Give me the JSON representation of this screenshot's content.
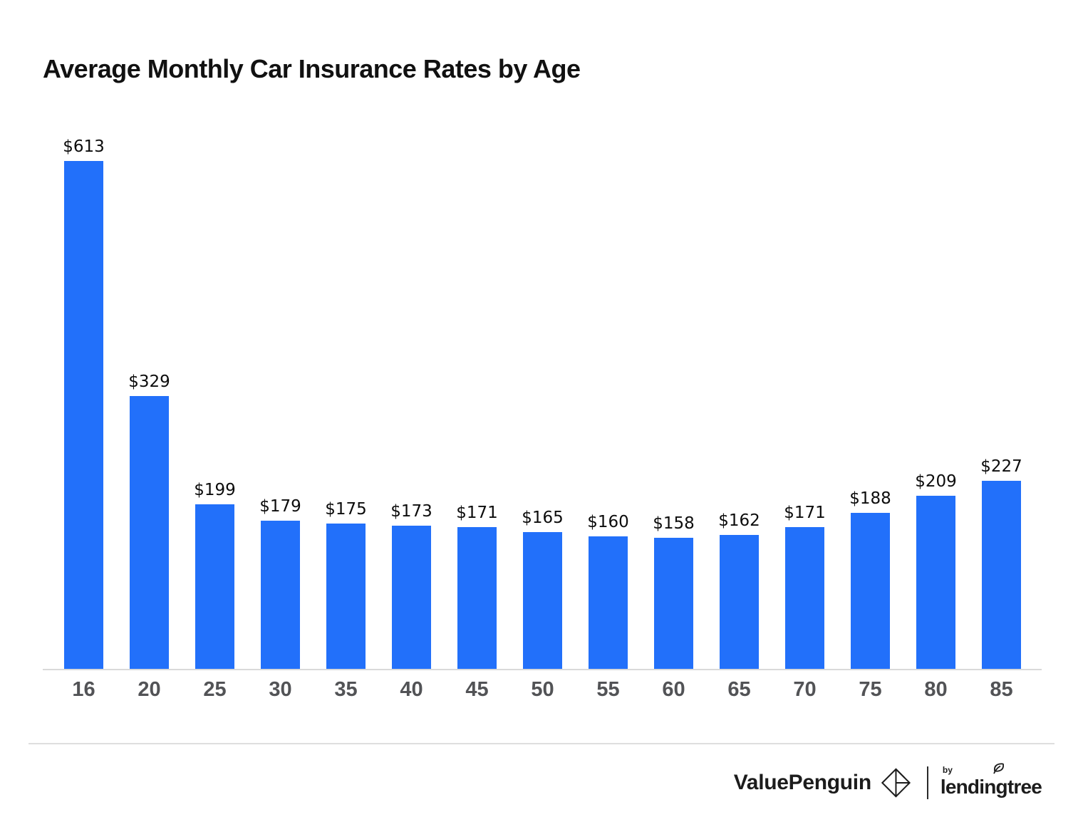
{
  "title": "Average Monthly Car Insurance Rates by Age",
  "chart_data": {
    "type": "bar",
    "title": "Average Monthly Car Insurance Rates by Age",
    "categories": [
      "16",
      "20",
      "25",
      "30",
      "35",
      "40",
      "45",
      "50",
      "55",
      "60",
      "65",
      "70",
      "75",
      "80",
      "85"
    ],
    "values": [
      613,
      329,
      199,
      179,
      175,
      173,
      171,
      165,
      160,
      158,
      162,
      171,
      188,
      209,
      227
    ],
    "value_labels": [
      "$613",
      "$329",
      "$199",
      "$179",
      "$175",
      "$173",
      "$171",
      "$165",
      "$160",
      "$158",
      "$162",
      "$171",
      "$188",
      "$209",
      "$227"
    ],
    "xlabel": "",
    "ylabel": "",
    "ylim": [
      0,
      650
    ],
    "grid": false,
    "legend": false,
    "bar_color": "#2270fa",
    "axis_line_color": "#d9d9d9",
    "tick_label_color": "#525356",
    "value_label_color": "#0c0c0c"
  },
  "footer": {
    "brand": "ValuePenguin",
    "by_label": "by",
    "partner_brand": "lendingtree"
  }
}
